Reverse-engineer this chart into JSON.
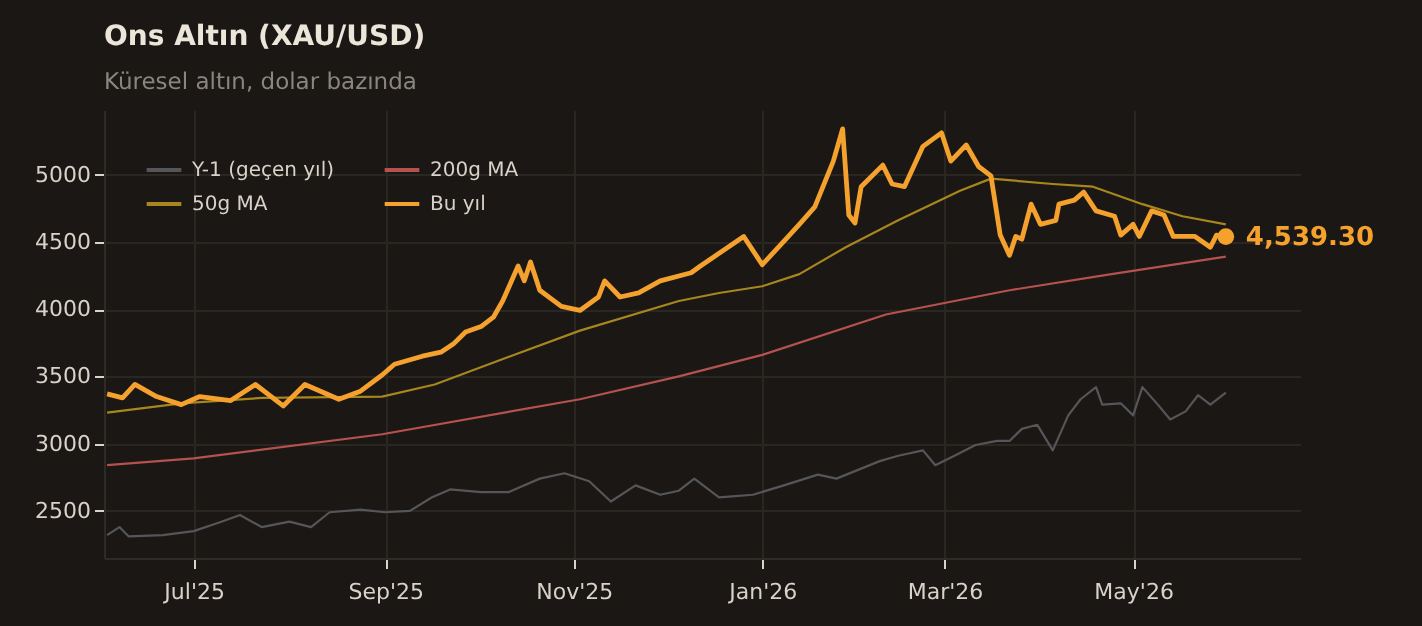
{
  "chart_data": {
    "type": "line",
    "title": "Ons Altın (XAU/USD)",
    "subtitle": "Küresel altın, dolar bazında",
    "xlim": [
      "2025-06-02",
      "2026-06-24"
    ],
    "xticks": [
      {
        "value": "2025-07-01",
        "label": "Jul'25"
      },
      {
        "value": "2025-09-01",
        "label": "Sep'25"
      },
      {
        "value": "2025-11-01",
        "label": "Nov'25"
      },
      {
        "value": "2026-01-01",
        "label": "Jan'26"
      },
      {
        "value": "2026-03-01",
        "label": "Mar'26"
      },
      {
        "value": "2026-05-01",
        "label": "May'26"
      }
    ],
    "ylim": [
      2150,
      5480
    ],
    "yticks": [
      2500,
      3000,
      3500,
      4000,
      4500,
      5000
    ],
    "grid": true,
    "legend": "top left",
    "annotations": [
      {
        "text": "4,539.30",
        "x": "2026-05-31",
        "y": 4539.3
      }
    ],
    "series": [
      {
        "name": "Y-1 (geçen yıl)",
        "color": "#55565a",
        "x": [
          "2025-06-03",
          "2025-06-07",
          "2025-06-10",
          "2025-06-21",
          "2025-07-01",
          "2025-07-10",
          "2025-07-16",
          "2025-07-23",
          "2025-08-01",
          "2025-08-08",
          "2025-08-14",
          "2025-08-24",
          "2025-09-01",
          "2025-09-09",
          "2025-09-16",
          "2025-09-22",
          "2025-10-02",
          "2025-10-11",
          "2025-10-21",
          "2025-10-29",
          "2025-11-06",
          "2025-11-13",
          "2025-11-21",
          "2025-11-29",
          "2025-12-05",
          "2025-12-10",
          "2025-12-18",
          "2025-12-29",
          "2026-01-08",
          "2026-01-19",
          "2026-01-25",
          "2026-02-08",
          "2026-02-14",
          "2026-02-22",
          "2026-02-26",
          "2026-03-05",
          "2026-03-11",
          "2026-03-18",
          "2026-03-22",
          "2026-03-26",
          "2026-03-31",
          "2026-04-05",
          "2026-04-10",
          "2026-04-14",
          "2026-04-19",
          "2026-04-21",
          "2026-04-27",
          "2026-05-01",
          "2026-05-04",
          "2026-05-09",
          "2026-05-13",
          "2026-05-18",
          "2026-05-22",
          "2026-05-26",
          "2026-05-31"
        ],
        "values": [
          2320,
          2380,
          2310,
          2320,
          2350,
          2420,
          2470,
          2380,
          2420,
          2380,
          2490,
          2510,
          2490,
          2500,
          2600,
          2660,
          2640,
          2640,
          2740,
          2780,
          2720,
          2570,
          2690,
          2620,
          2650,
          2740,
          2600,
          2620,
          2690,
          2770,
          2740,
          2870,
          2910,
          2950,
          2840,
          2920,
          2990,
          3020,
          3020,
          3110,
          3140,
          2950,
          3210,
          3330,
          3420,
          3290,
          3300,
          3210,
          3420,
          3290,
          3180,
          3240,
          3360,
          3290,
          3380
        ]
      },
      {
        "name": "50g MA",
        "color": "#a8861e",
        "x": [
          "2025-06-03",
          "2025-06-27",
          "2025-07-23",
          "2025-08-31",
          "2025-09-17",
          "2025-10-08",
          "2025-11-03",
          "2025-12-05",
          "2025-12-18",
          "2026-01-01",
          "2026-01-13",
          "2026-01-28",
          "2026-02-14",
          "2026-03-06",
          "2026-03-16",
          "2026-04-05",
          "2026-04-18",
          "2026-05-04",
          "2026-05-17",
          "2026-05-31"
        ],
        "values": [
          3230,
          3300,
          3340,
          3350,
          3440,
          3620,
          3840,
          4060,
          4120,
          4170,
          4260,
          4460,
          4660,
          4880,
          4970,
          4930,
          4910,
          4780,
          4690,
          4630
        ]
      },
      {
        "name": "200g MA",
        "color": "#b5524f",
        "x": [
          "2025-06-03",
          "2025-07-01",
          "2025-08-31",
          "2025-11-03",
          "2025-12-05",
          "2026-01-01",
          "2026-02-10",
          "2026-03-22",
          "2026-04-24",
          "2026-05-31"
        ],
        "values": [
          2840,
          2890,
          3070,
          3330,
          3500,
          3660,
          3960,
          4140,
          4260,
          4390
        ]
      },
      {
        "name": "Bu yıl",
        "color": "#f5a12e",
        "x": [
          "2025-06-03",
          "2025-06-08",
          "2025-06-12",
          "2025-06-19",
          "2025-06-27",
          "2025-07-03",
          "2025-07-13",
          "2025-07-21",
          "2025-07-30",
          "2025-08-06",
          "2025-08-17",
          "2025-08-24",
          "2025-08-31",
          "2025-09-04",
          "2025-09-13",
          "2025-09-19",
          "2025-09-23",
          "2025-09-27",
          "2025-10-02",
          "2025-10-06",
          "2025-10-09",
          "2025-10-14",
          "2025-10-16",
          "2025-10-18",
          "2025-10-21",
          "2025-10-28",
          "2025-11-03",
          "2025-11-09",
          "2025-11-11",
          "2025-11-16",
          "2025-11-22",
          "2025-11-29",
          "2025-12-09",
          "2025-12-12",
          "2025-12-26",
          "2026-01-01",
          "2026-01-07",
          "2026-01-13",
          "2026-01-18",
          "2026-01-24",
          "2026-01-27",
          "2026-01-29",
          "2026-01-31",
          "2026-02-02",
          "2026-02-09",
          "2026-02-12",
          "2026-02-16",
          "2026-02-22",
          "2026-02-28",
          "2026-03-03",
          "2026-03-08",
          "2026-03-12",
          "2026-03-16",
          "2026-03-19",
          "2026-03-22",
          "2026-03-24",
          "2026-03-26",
          "2026-03-29",
          "2026-04-01",
          "2026-04-06",
          "2026-04-07",
          "2026-04-12",
          "2026-04-15",
          "2026-04-19",
          "2026-04-25",
          "2026-04-27",
          "2026-05-01",
          "2026-05-03",
          "2026-05-07",
          "2026-05-11",
          "2026-05-14",
          "2026-05-21",
          "2026-05-26",
          "2026-05-28",
          "2026-05-31"
        ],
        "values": [
          3370,
          3340,
          3440,
          3350,
          3290,
          3350,
          3320,
          3440,
          3280,
          3440,
          3330,
          3390,
          3510,
          3590,
          3650,
          3680,
          3740,
          3830,
          3870,
          3940,
          4060,
          4320,
          4210,
          4350,
          4140,
          4020,
          3990,
          4090,
          4210,
          4090,
          4120,
          4210,
          4270,
          4320,
          4540,
          4330,
          4480,
          4630,
          4760,
          5100,
          5340,
          4700,
          4640,
          4910,
          5070,
          4930,
          4910,
          5210,
          5310,
          5100,
          5220,
          5060,
          4990,
          4550,
          4400,
          4540,
          4520,
          4780,
          4630,
          4660,
          4780,
          4810,
          4870,
          4730,
          4690,
          4550,
          4630,
          4540,
          4730,
          4700,
          4540,
          4540,
          4460,
          4550,
          4539.3
        ]
      }
    ]
  }
}
